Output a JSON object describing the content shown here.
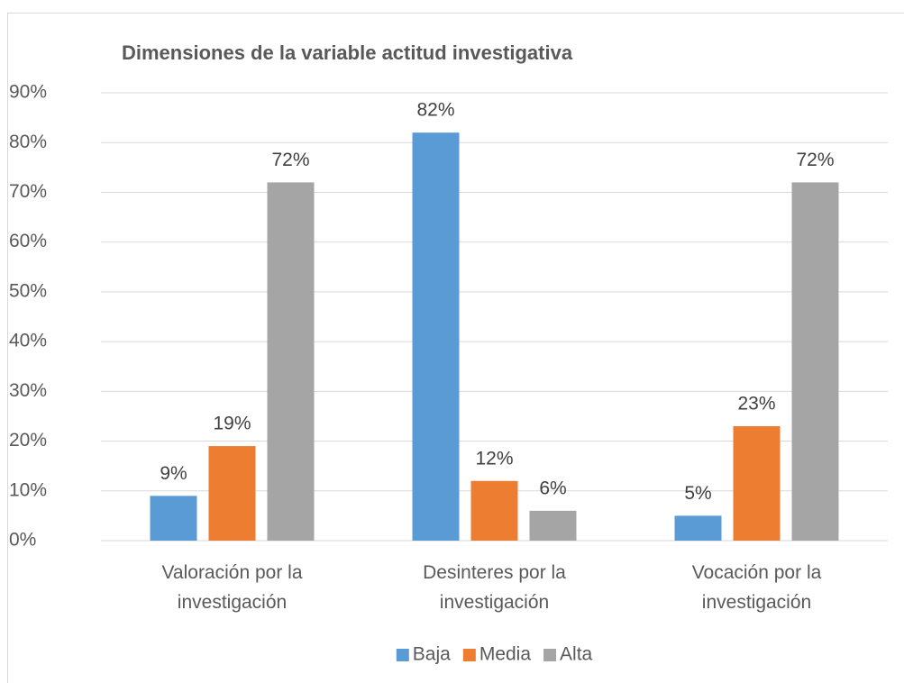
{
  "chart_data": {
    "type": "bar",
    "title": "Dimensiones de la variable actitud  investigativa",
    "categories": [
      "Valoración por la investigación",
      "Desinteres por la investigación",
      "Vocación por la investigación"
    ],
    "series": [
      {
        "name": "Baja",
        "color": "#5b9bd5",
        "values": [
          9,
          82,
          5
        ],
        "value_labels": [
          "9%",
          "82%",
          "5%"
        ]
      },
      {
        "name": "Media",
        "color": "#ed7d31",
        "values": [
          19,
          12,
          23
        ],
        "value_labels": [
          "19%",
          "12%",
          "23%"
        ]
      },
      {
        "name": "Alta",
        "color": "#a5a5a5",
        "values": [
          72,
          6,
          72
        ],
        "value_labels": [
          "72%",
          "6%",
          "72%"
        ]
      }
    ],
    "ylim": [
      0,
      90
    ],
    "yticks": [
      {
        "value": 0,
        "label": "0%"
      },
      {
        "value": 10,
        "label": "10%"
      },
      {
        "value": 20,
        "label": "20%"
      },
      {
        "value": 30,
        "label": "30%"
      },
      {
        "value": 40,
        "label": "40%"
      },
      {
        "value": 50,
        "label": "50%"
      },
      {
        "value": 60,
        "label": "60%"
      },
      {
        "value": 70,
        "label": "70%"
      },
      {
        "value": 80,
        "label": "80%"
      },
      {
        "value": 90,
        "label": "90%"
      }
    ],
    "grid": true,
    "legend": "bottom"
  }
}
